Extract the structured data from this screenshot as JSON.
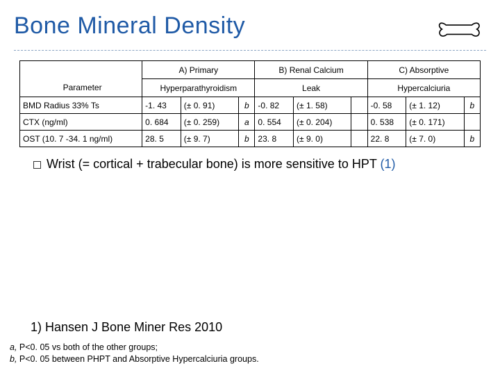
{
  "title": "Bone Mineral Density",
  "icon": "bone-icon",
  "divider_color": "#8aa4c2",
  "accent_color": "#1f5aa6",
  "table": {
    "group_headers": [
      "A) Primary",
      "B) Renal Calcium",
      "C) Absorptive"
    ],
    "sub_headers_label": "Parameter",
    "sub_headers": [
      "Hyperparathyroidism",
      "Leak",
      "Hypercalciuria"
    ],
    "rows": [
      {
        "param": "BMD Radius 33% Ts",
        "cells": [
          {
            "value": "-1. 43",
            "sd": "(± 0. 91)",
            "sup": "b"
          },
          {
            "value": "-0. 82",
            "sd": "(± 1. 58)",
            "sup": ""
          },
          {
            "value": "-0. 58",
            "sd": "(± 1. 12)",
            "sup": "b"
          }
        ]
      },
      {
        "param": "CTX (ng/ml)",
        "cells": [
          {
            "value": "0. 684",
            "sd": "(± 0. 259)",
            "sup": "a"
          },
          {
            "value": "0. 554",
            "sd": "(± 0. 204)",
            "sup": ""
          },
          {
            "value": "0. 538",
            "sd": "(± 0. 171)",
            "sup": ""
          }
        ]
      },
      {
        "param": "OST (10. 7 -34. 1 ng/ml)",
        "cells": [
          {
            "value": "28. 5",
            "sd": "(± 9. 7)",
            "sup": "b"
          },
          {
            "value": "23. 8",
            "sd": "(± 9. 0)",
            "sup": ""
          },
          {
            "value": "22. 8",
            "sd": "(± 7. 0)",
            "sup": "b"
          }
        ]
      }
    ]
  },
  "bullet": {
    "text_before": "Wrist (= cortical + trabecular bone) is more sensitive to HPT ",
    "ref": "(1)"
  },
  "reference": "1) Hansen J Bone Miner Res 2010",
  "footnotes": {
    "line1_i": "a,",
    "line1": " P<0. 05 vs both of the other groups;",
    "line2_i": "b,",
    "line2": " P<0. 05 between PHPT and Absorptive Hypercalciuria groups."
  }
}
